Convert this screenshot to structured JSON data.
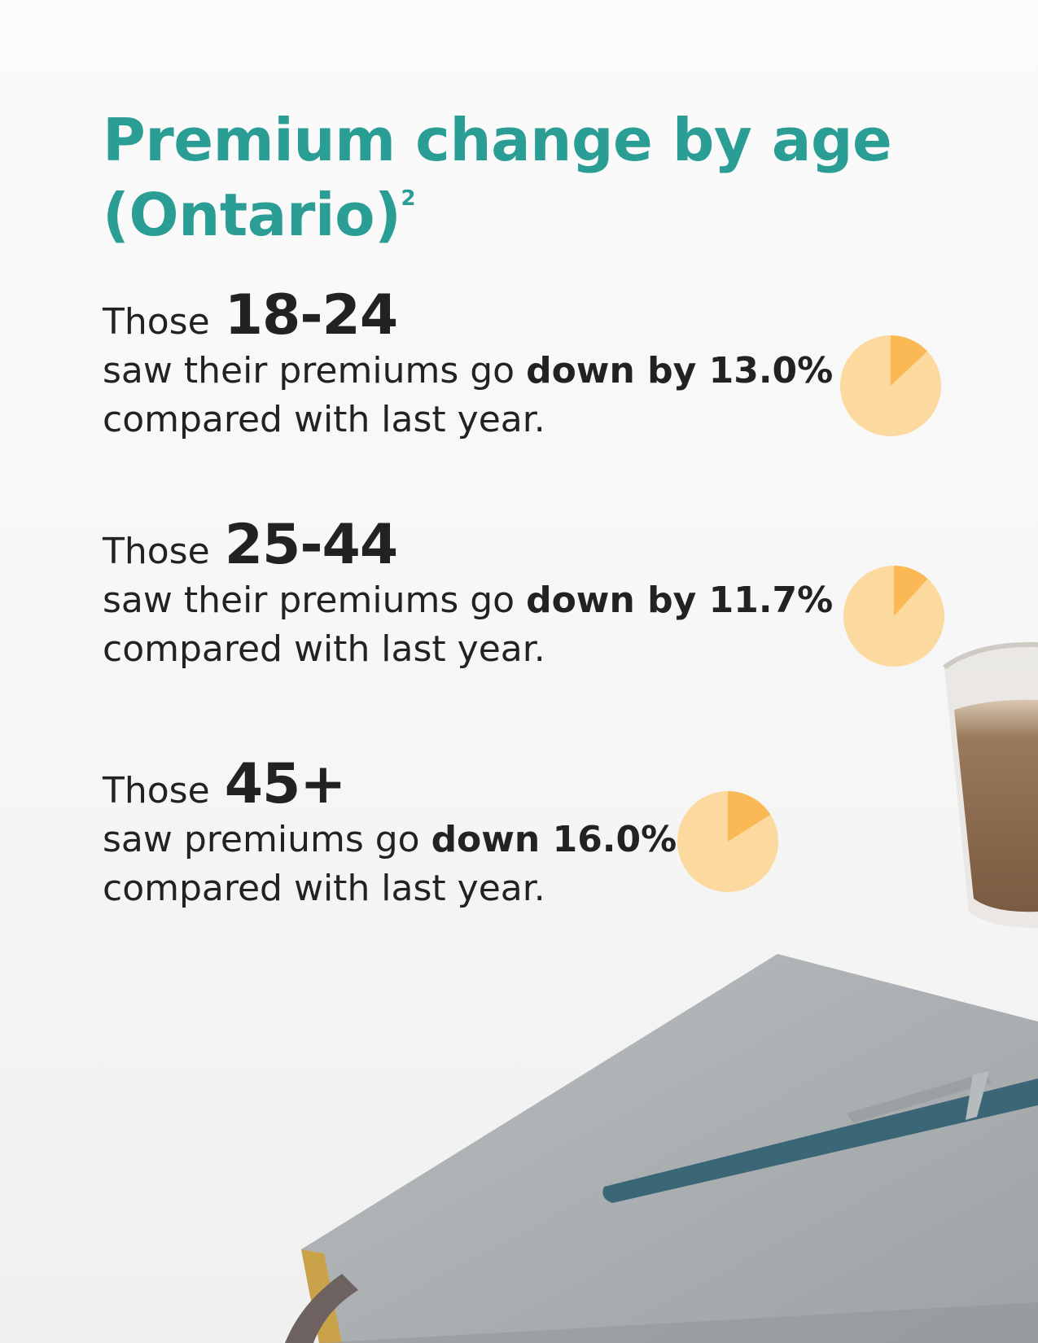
{
  "title": "Premium change by age (Ontario)",
  "title_footnote": "2",
  "chart_data": {
    "type": "pie",
    "title": "Premium change by age (Ontario)",
    "categories": [
      "18-24",
      "25-44",
      "45+"
    ],
    "values": [
      13.0,
      11.7,
      16.0
    ],
    "unit": "%",
    "direction": "down",
    "colors": {
      "slice": "#fbb955",
      "remainder": "#fcd99f"
    }
  },
  "stats": [
    {
      "prefix": "Those",
      "age": "18-24",
      "line2_pre": "saw their premiums go ",
      "line2_bold": "down by 13.0%",
      "line3": "compared with last year."
    },
    {
      "prefix": "Those",
      "age": "25-44",
      "line2_pre": "saw their premiums go ",
      "line2_bold": "down by 11.7%",
      "line3": "compared with last year."
    },
    {
      "prefix": "Those",
      "age": "45+",
      "line2_pre": "saw premiums go ",
      "line2_bold": "down 16.0%",
      "line3": "compared with last year."
    }
  ],
  "colors": {
    "title": "#2a9d95",
    "text": "#222222",
    "notebook": "#a9adb0",
    "pen": "#3a6676",
    "gilt_edge": "#c9a24a"
  }
}
